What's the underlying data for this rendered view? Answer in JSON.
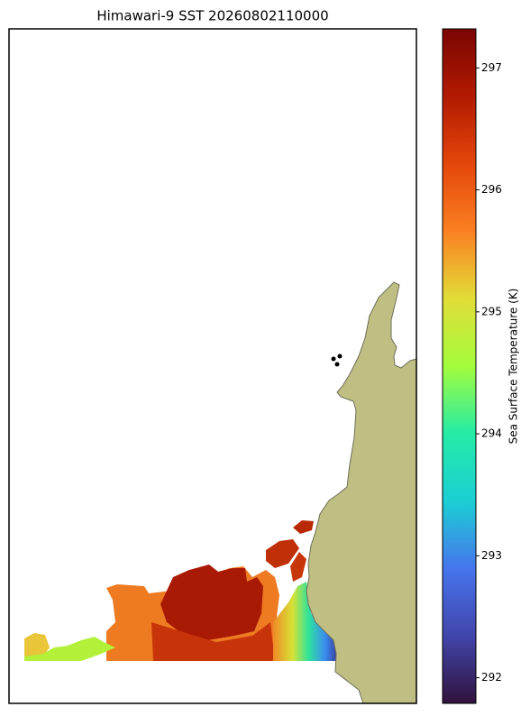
{
  "title": "Himawari-9 SST 20260802110000",
  "colorbar": {
    "label": "Sea Surface Temperature (K)",
    "lim": [
      291.79,
      297.32
    ],
    "ticks": [
      292,
      293,
      294,
      295,
      296,
      297
    ]
  }
}
